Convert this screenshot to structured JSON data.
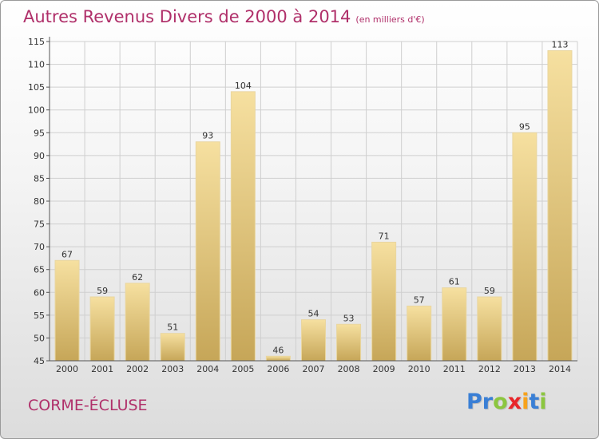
{
  "title": "Autres Revenus Divers de 2000 à 2014",
  "title_unit": "(en milliers d'€)",
  "town": "CORME-ÉCLUSE",
  "logo": {
    "letters": [
      {
        "ch": "P",
        "color": "#3a7fd5"
      },
      {
        "ch": "r",
        "color": "#3a7fd5"
      },
      {
        "ch": "o",
        "color": "#8cc63f"
      },
      {
        "ch": "x",
        "color": "#e8262a"
      },
      {
        "ch": "i",
        "color": "#f7a21b"
      },
      {
        "ch": "t",
        "color": "#3a7fd5"
      },
      {
        "ch": "i",
        "color": "#8cc63f"
      }
    ]
  },
  "colors": {
    "title": "#b0306a",
    "bar_light": "#f5dd9a",
    "bar_dark": "#c9a95a",
    "grid": "#cfcfcf",
    "axis": "#555555",
    "text": "#333333"
  },
  "chart_data": {
    "type": "bar",
    "title": "Autres Revenus Divers de 2000 à 2014",
    "categories": [
      "2000",
      "2001",
      "2002",
      "2003",
      "2004",
      "2005",
      "2006",
      "2007",
      "2008",
      "2009",
      "2010",
      "2011",
      "2012",
      "2013",
      "2014"
    ],
    "values": [
      67,
      59,
      62,
      51,
      93,
      104,
      46,
      54,
      53,
      71,
      57,
      61,
      59,
      95,
      113
    ],
    "ylim": [
      45,
      115
    ],
    "yticks": [
      45,
      50,
      55,
      60,
      65,
      70,
      75,
      80,
      85,
      90,
      95,
      100,
      105,
      110,
      115
    ],
    "grid": true,
    "xlabel": "",
    "ylabel": ""
  }
}
